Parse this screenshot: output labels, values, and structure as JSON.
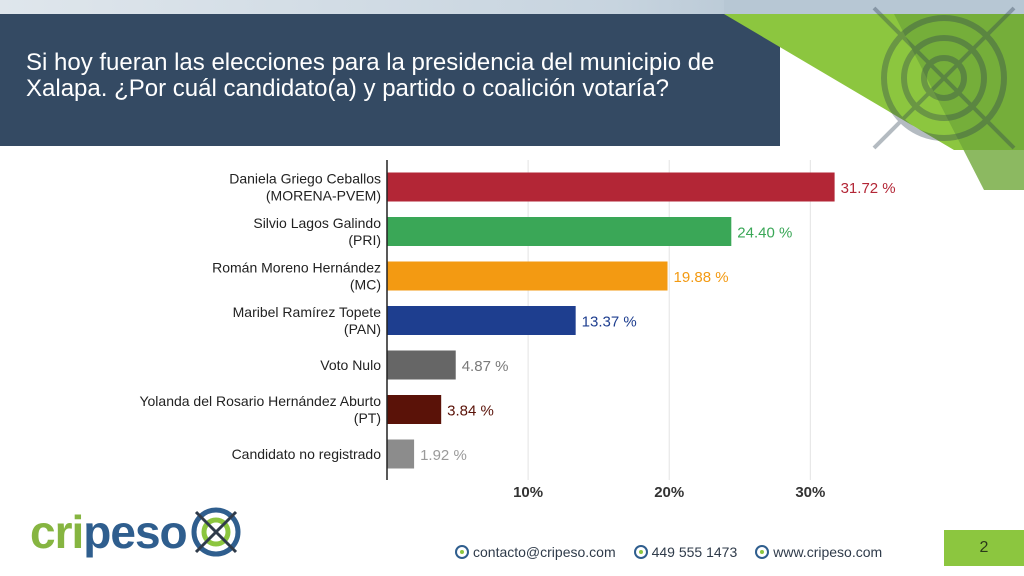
{
  "title": "Si hoy fueran las elecciones para la presidencia del municipio de Xalapa. ¿Por cuál candidato(a) y partido o coalición votaría?",
  "logo": {
    "part1": "cri",
    "part2": "peso"
  },
  "footer": {
    "email": "contacto@cripeso.com",
    "phone": "449 555 1473",
    "website": "www.cripeso.com"
  },
  "page_number": "2",
  "colors": {
    "title_band": "#344a63",
    "brand_green": "#8cc63f",
    "brand_blue": "#2f5e8e"
  },
  "chart_data": {
    "type": "bar",
    "orientation": "horizontal",
    "title": "",
    "xlabel": "",
    "ylabel": "",
    "xlim": [
      0,
      36
    ],
    "xticks": [
      10,
      20,
      30
    ],
    "xtick_labels": [
      "10%",
      "20%",
      "30%"
    ],
    "grid": true,
    "categories": [
      [
        "Daniela Griego Ceballos",
        "(MORENA-PVEM)"
      ],
      [
        "Silvio Lagos Galindo",
        "(PRI)"
      ],
      [
        "Román Moreno Hernández",
        "(MC)"
      ],
      [
        "Maribel Ramírez Topete",
        "(PAN)"
      ],
      [
        "Voto Nulo"
      ],
      [
        "Yolanda del Rosario Hernández Aburto",
        "(PT)"
      ],
      [
        "Candidato no registrado"
      ]
    ],
    "values": [
      31.72,
      24.4,
      19.88,
      13.37,
      4.87,
      3.84,
      1.92
    ],
    "labels": [
      "31.72 %",
      "24.40 %",
      "19.88 %",
      "13.37 %",
      "4.87 %",
      "3.84 %",
      "1.92 %"
    ],
    "colors": [
      "#b32636",
      "#3aa757",
      "#f39a12",
      "#1e3e8f",
      "#666666",
      "#5a1208",
      "#8c8c8c"
    ],
    "label_colors": [
      "#b32636",
      "#3aa757",
      "#f39a12",
      "#1e3e8f",
      "#7a7a7a",
      "#5a1208",
      "#9a9a9a"
    ]
  }
}
